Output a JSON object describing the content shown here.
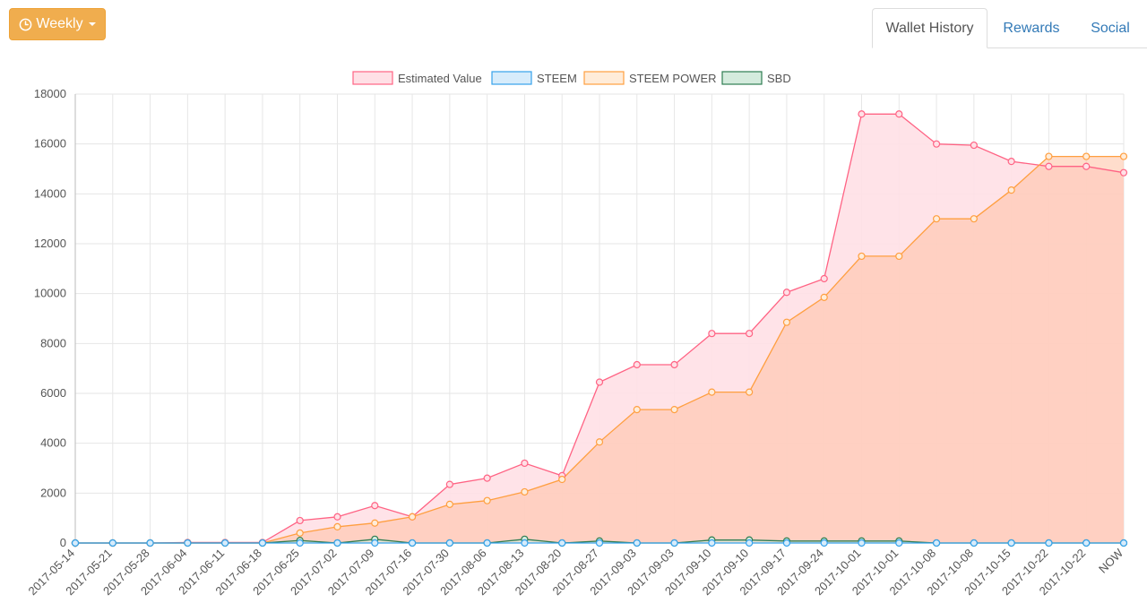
{
  "toolbar": {
    "period_label": "Weekly",
    "period_icon": "clock-icon"
  },
  "tabs": [
    {
      "label": "Wallet History",
      "active": true
    },
    {
      "label": "Rewards",
      "active": false
    },
    {
      "label": "Social",
      "active": false
    }
  ],
  "chart_data": {
    "type": "area",
    "title": "",
    "xlabel": "",
    "ylabel": "",
    "ylim": [
      0,
      18000
    ],
    "yticks": [
      0,
      2000,
      4000,
      6000,
      8000,
      10000,
      12000,
      14000,
      16000,
      18000
    ],
    "grid": true,
    "legend_position": "top-center",
    "categories": [
      "2017-05-14",
      "2017-05-21",
      "2017-05-28",
      "2017-06-04",
      "2017-06-11",
      "2017-06-18",
      "2017-06-25",
      "2017-07-02",
      "2017-07-09",
      "2017-07-16",
      "2017-07-30",
      "2017-08-06",
      "2017-08-13",
      "2017-08-20",
      "2017-08-27",
      "2017-09-03",
      "2017-09-03",
      "2017-09-10",
      "2017-09-10",
      "2017-09-17",
      "2017-09-24",
      "2017-10-01",
      "2017-10-01",
      "2017-10-08",
      "2017-10-08",
      "2017-10-15",
      "2017-10-22",
      "2017-10-22",
      "NOW"
    ],
    "series": [
      {
        "name": "Estimated Value",
        "color": "#ff6384",
        "fill": "#ffe0e6",
        "values": [
          0,
          0,
          0,
          20,
          20,
          20,
          900,
          1050,
          1500,
          1050,
          2350,
          2600,
          3200,
          2700,
          6450,
          7150,
          7150,
          8400,
          8400,
          10050,
          10600,
          17200,
          17200,
          16000,
          15950,
          15300,
          15100,
          15100,
          14850
        ]
      },
      {
        "name": "STEEM",
        "color": "#36a2eb",
        "fill": "#d7ecfb",
        "values": [
          0,
          0,
          0,
          0,
          0,
          0,
          0,
          0,
          0,
          0,
          0,
          0,
          0,
          0,
          0,
          0,
          0,
          0,
          0,
          0,
          0,
          0,
          0,
          0,
          0,
          0,
          0,
          0,
          0
        ]
      },
      {
        "name": "STEEM POWER",
        "color": "#ff9f40",
        "fill": "#ffecd9",
        "values": [
          0,
          0,
          0,
          0,
          0,
          0,
          400,
          650,
          800,
          1050,
          1550,
          1700,
          2050,
          2550,
          4050,
          5350,
          5350,
          6050,
          6050,
          8850,
          9850,
          11500,
          11500,
          13000,
          13000,
          14150,
          15500,
          15500,
          15500
        ]
      },
      {
        "name": "SBD",
        "color": "#2e7d52",
        "fill": "#d4ebdd",
        "values": [
          0,
          0,
          0,
          0,
          0,
          0,
          100,
          0,
          150,
          0,
          0,
          0,
          150,
          0,
          80,
          0,
          0,
          120,
          120,
          80,
          80,
          80,
          80,
          0,
          0,
          0,
          0,
          0,
          0
        ]
      }
    ]
  }
}
